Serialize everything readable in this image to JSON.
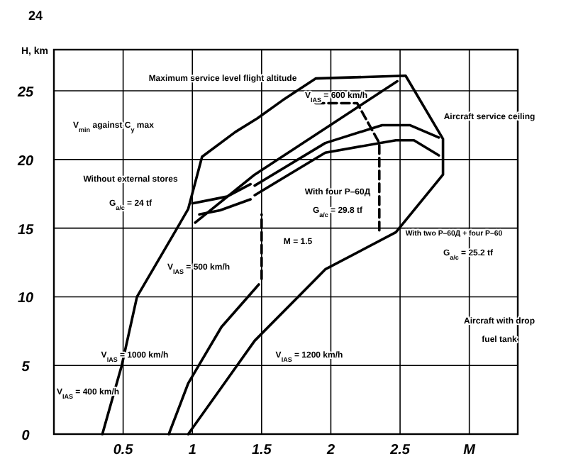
{
  "chart_data": {
    "type": "line",
    "ylabel": "H, km",
    "xlim": [
      0,
      3.35
    ],
    "ylim": [
      0,
      28
    ],
    "xticks": [
      0.5,
      1,
      1.5,
      2,
      2.5,
      {
        "value": 3,
        "label": "M"
      }
    ],
    "yticks": [
      0,
      5,
      10,
      15,
      20,
      25
    ],
    "grid": true,
    "marker": "none",
    "series": [
      {
        "color": "#000000",
        "x": [
          0.35,
          0.49,
          0.6,
          0.89,
          0.97,
          1.07,
          1.31,
          1.47,
          1.65,
          1.89,
          2.54,
          2.81,
          2.81,
          2.47,
          1.96,
          1.45,
          1.21,
          0.97
        ],
        "values": [
          0,
          5,
          10,
          15,
          16.4,
          20.2,
          22,
          23,
          24.3,
          25.9,
          26.1,
          21.5,
          18.9,
          14.7,
          12,
          6.8,
          3.4,
          0
        ]
      },
      {
        "color": "#000000",
        "x": [
          0.83,
          0.97,
          1.21,
          1.48
        ],
        "values": [
          0,
          3.7,
          7.8,
          10.9
        ]
      },
      {
        "color": "#000000",
        "x": [
          1.02,
          1.45,
          2.48
        ],
        "values": [
          15.4,
          18.9,
          25.7
        ]
      },
      {
        "color": "#000000",
        "x": [
          1.45,
          1.96,
          2.37,
          2.57,
          2.78
        ],
        "values": [
          18.1,
          21.2,
          22.5,
          22.5,
          21.6
        ]
      },
      {
        "color": "#000000",
        "x": [
          1.45,
          1.96,
          2.47,
          2.6,
          2.78
        ],
        "values": [
          17.4,
          20.5,
          21.4,
          21.4,
          20.3
        ]
      },
      {
        "color": "#000000",
        "line_style": "dashed",
        "x": [
          1.89,
          2.19,
          2.35,
          2.35
        ],
        "values": [
          24.1,
          24.1,
          21.2,
          14.6
        ]
      },
      {
        "color": "#000000",
        "line_style": "dashed",
        "x": [
          1.5,
          1.5
        ],
        "values": [
          11.3,
          16
        ]
      },
      {
        "color": "#000000",
        "x": [
          1.0,
          1.25,
          1.42
        ],
        "values": [
          16.8,
          17.3,
          18.2
        ]
      },
      {
        "color": "#000000",
        "x": [
          1.05,
          1.2,
          1.42
        ],
        "values": [
          16.0,
          16.3,
          17.1
        ]
      }
    ],
    "annotations": [
      "24",
      "Maximum service level flight altitude",
      "Aircraft service ceiling",
      "V$_{min}$ against C$_{y}$ max",
      "V$_{IAS}$ = 600 km/h",
      "Without external stores",
      "G$_{a/c}$ = 24 tf",
      "With four P–60Д",
      "G$_{a/c}$ = 29.8 tf",
      "M = 1.5",
      "With two P–60Д + four P–60",
      "G$_{a/c}$ = 25.2 tf",
      "Aircraft with drop",
      "fuel tank",
      "V$_{IAS}$ = 400 km/h",
      "V$_{IAS}$ = 500 km/h",
      "V$_{IAS}$ = 1000 km/h",
      "V$_{IAS}$ = 1200 km/h"
    ]
  }
}
